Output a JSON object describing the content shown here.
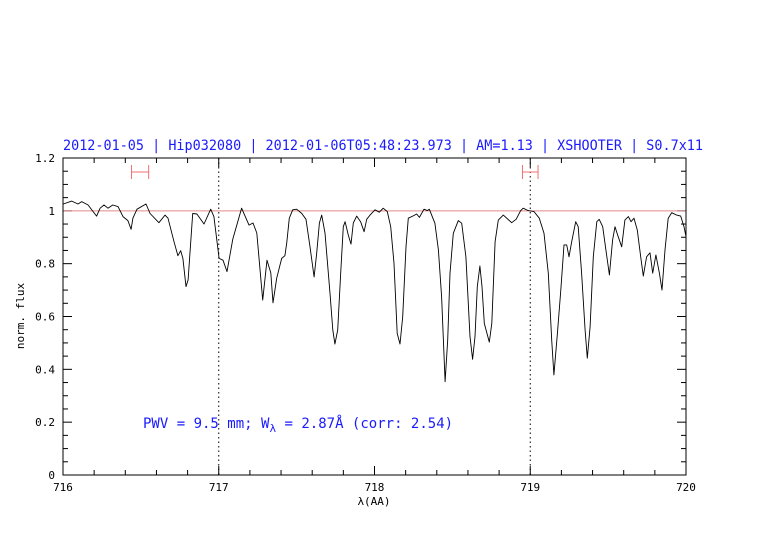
{
  "chart_data": {
    "type": "line",
    "title": "2012-01-05 | Hip032080 | 2012-01-06T05:48:23.973 | AM=1.13 | XSHOOTER | S0.7x11",
    "xlabel": "λ(AA)",
    "ylabel": "norm. flux",
    "xlim": [
      716,
      720
    ],
    "ylim": [
      0,
      1.2
    ],
    "xticks": [
      "716",
      "717",
      "718",
      "719",
      "720"
    ],
    "yticks": [
      "0",
      "0.2",
      "0.4",
      "0.6",
      "0.8",
      "1",
      "1.2"
    ],
    "x_minor_step": 0.2,
    "y_minor_step": 0.05,
    "grid": false,
    "reference_line": 1.0,
    "vertical_markers": [
      717,
      719
    ],
    "intervals": [
      [
        716.44,
        716.55
      ],
      [
        718.95,
        719.05
      ]
    ],
    "interval_level": 1.147,
    "annotation": {
      "prefix": "PWV = 9.5 mm; W",
      "sub": "λ",
      "suffix": " = 2.87Å (corr: 2.54)"
    },
    "colors": {
      "title": "#1a1aff",
      "annotation": "#1a1aff",
      "line": "#000000",
      "reference": "#e08a8a",
      "interval": "#f07070",
      "axes": "#000000"
    },
    "series": [
      {
        "x": [
          716.002,
          716.056,
          716.096,
          716.12,
          716.161,
          716.193,
          716.216,
          716.238,
          716.263,
          716.289,
          716.319,
          716.353,
          716.385,
          716.417,
          716.437,
          716.449,
          716.475,
          716.533,
          716.559,
          716.616,
          716.655,
          716.674,
          716.713,
          716.738,
          716.756,
          716.77,
          716.79,
          716.803,
          716.833,
          716.86,
          716.905,
          716.948,
          716.969,
          717.002,
          717.027,
          717.053,
          717.09,
          717.147,
          717.194,
          717.22,
          717.244,
          717.282,
          717.31,
          717.334,
          717.348,
          717.372,
          717.393,
          717.404,
          717.425,
          717.436,
          717.453,
          717.475,
          717.5,
          717.533,
          717.56,
          717.586,
          717.612,
          717.629,
          717.646,
          717.661,
          717.682,
          717.714,
          717.732,
          717.746,
          717.764,
          717.783,
          717.8,
          717.811,
          717.832,
          717.849,
          717.864,
          717.886,
          717.911,
          717.933,
          717.95,
          717.971,
          718.003,
          718.031,
          718.056,
          718.082,
          718.104,
          718.125,
          718.146,
          718.164,
          718.181,
          718.202,
          718.217,
          718.245,
          718.271,
          718.288,
          718.318,
          718.339,
          718.352,
          718.388,
          718.41,
          718.431,
          718.453,
          718.47,
          718.485,
          718.506,
          718.538,
          718.56,
          718.587,
          718.613,
          718.63,
          718.645,
          718.66,
          718.677,
          718.69,
          718.705,
          718.737,
          718.753,
          718.774,
          718.795,
          718.827,
          718.881,
          718.909,
          718.939,
          718.955,
          718.987,
          719.024,
          719.058,
          719.088,
          719.116,
          719.138,
          719.152,
          719.174,
          719.196,
          719.217,
          719.234,
          719.249,
          719.266,
          719.292,
          719.308,
          719.33,
          719.352,
          719.366,
          719.384,
          719.405,
          719.427,
          719.443,
          719.465,
          719.486,
          719.508,
          719.529,
          719.544,
          719.565,
          719.587,
          719.608,
          719.63,
          719.647,
          719.666,
          719.687,
          719.709,
          719.726,
          719.747,
          719.769,
          719.786,
          719.807,
          719.829,
          719.846,
          719.865,
          719.886,
          719.908,
          719.94,
          719.966,
          719.987,
          720.0
        ],
        "y": [
          1.026,
          1.037,
          1.026,
          1.035,
          1.022,
          0.997,
          0.98,
          1.01,
          1.022,
          1.01,
          1.022,
          1.016,
          0.978,
          0.963,
          0.93,
          0.972,
          1.006,
          1.026,
          0.99,
          0.955,
          0.984,
          0.972,
          0.883,
          0.83,
          0.849,
          0.82,
          0.713,
          0.738,
          0.99,
          0.988,
          0.95,
          1.006,
          0.978,
          0.82,
          0.813,
          0.77,
          0.893,
          1.01,
          0.946,
          0.954,
          0.916,
          0.662,
          0.813,
          0.765,
          0.652,
          0.745,
          0.795,
          0.82,
          0.83,
          0.877,
          0.972,
          1.004,
          1.006,
          0.99,
          0.968,
          0.864,
          0.75,
          0.84,
          0.954,
          0.984,
          0.916,
          0.688,
          0.549,
          0.496,
          0.549,
          0.765,
          0.94,
          0.959,
          0.908,
          0.874,
          0.954,
          0.98,
          0.959,
          0.921,
          0.968,
          0.984,
          1.004,
          0.995,
          1.01,
          0.997,
          0.94,
          0.801,
          0.536,
          0.496,
          0.599,
          0.864,
          0.972,
          0.98,
          0.988,
          0.975,
          1.006,
          1.001,
          1.006,
          0.953,
          0.852,
          0.675,
          0.353,
          0.511,
          0.764,
          0.915,
          0.963,
          0.953,
          0.826,
          0.524,
          0.438,
          0.524,
          0.713,
          0.791,
          0.713,
          0.574,
          0.503,
          0.574,
          0.883,
          0.965,
          0.984,
          0.955,
          0.968,
          1.001,
          1.01,
          1.001,
          0.997,
          0.972,
          0.915,
          0.764,
          0.511,
          0.379,
          0.536,
          0.7,
          0.871,
          0.871,
          0.826,
          0.883,
          0.959,
          0.94,
          0.764,
          0.549,
          0.442,
          0.561,
          0.826,
          0.959,
          0.968,
          0.94,
          0.852,
          0.757,
          0.89,
          0.94,
          0.902,
          0.864,
          0.965,
          0.978,
          0.959,
          0.972,
          0.927,
          0.826,
          0.753,
          0.826,
          0.841,
          0.764,
          0.833,
          0.764,
          0.7,
          0.852,
          0.972,
          0.993,
          0.984,
          0.98,
          0.94,
          0.902
        ]
      }
    ]
  }
}
